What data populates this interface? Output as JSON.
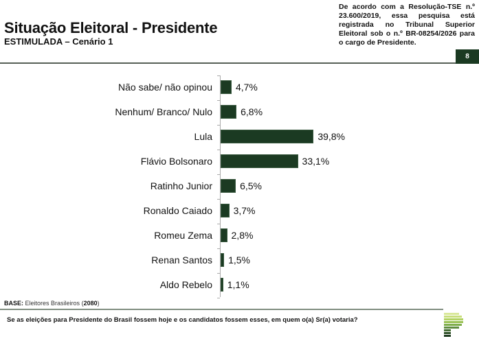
{
  "header": {
    "title": "Situação Eleitoral - Presidente",
    "subtitle": "ESTIMULADA – Cenário 1",
    "registration_note": "De acordo com a Resolução-TSE n.º 23.600/2019, essa pesquisa está registrada no Tribunal Superior Eleitoral sob o n.º BR-08254/2026 para o cargo de Presidente.",
    "page_number": "8"
  },
  "chart_data": {
    "type": "bar",
    "orientation": "horizontal",
    "title": "Situação Eleitoral - Presidente",
    "subtitle": "ESTIMULADA – Cenário 1",
    "xlabel": "",
    "ylabel": "",
    "categories": [
      "Não sabe/ não opinou",
      "Nenhum/ Branco/ Nulo",
      "Lula",
      "Flávio Bolsonaro",
      "Ratinho Junior",
      "Ronaldo Caiado",
      "Romeu Zema",
      "Renan Santos",
      "Aldo Rebelo"
    ],
    "values": [
      4.7,
      6.8,
      39.8,
      33.1,
      6.5,
      3.7,
      2.8,
      1.5,
      1.1
    ],
    "value_labels": [
      "4,7%",
      "6,8%",
      "39,8%",
      "33,1%",
      "6,5%",
      "3,7%",
      "2,8%",
      "1,5%",
      "1,1%"
    ],
    "unit": "%",
    "bar_color": "#1b3a22",
    "grid": false,
    "legend": null
  },
  "footer": {
    "base_label": "BASE:",
    "base_text": "Eleitores Brasileiros",
    "base_count": "2080",
    "question": "Se as eleições para Presidente do Brasil fossem hoje e os candidatos fossem esses, em quem o(a) Sr(a) votaria?"
  },
  "colors": {
    "accent_dark_green": "#1b3a22",
    "logo_gradient": [
      "#d9e89a",
      "#c8de7a",
      "#b2d262",
      "#9bc356",
      "#7fae4c",
      "#5f8c40",
      "#456d34",
      "#2f5128",
      "#1e3a1f"
    ]
  }
}
